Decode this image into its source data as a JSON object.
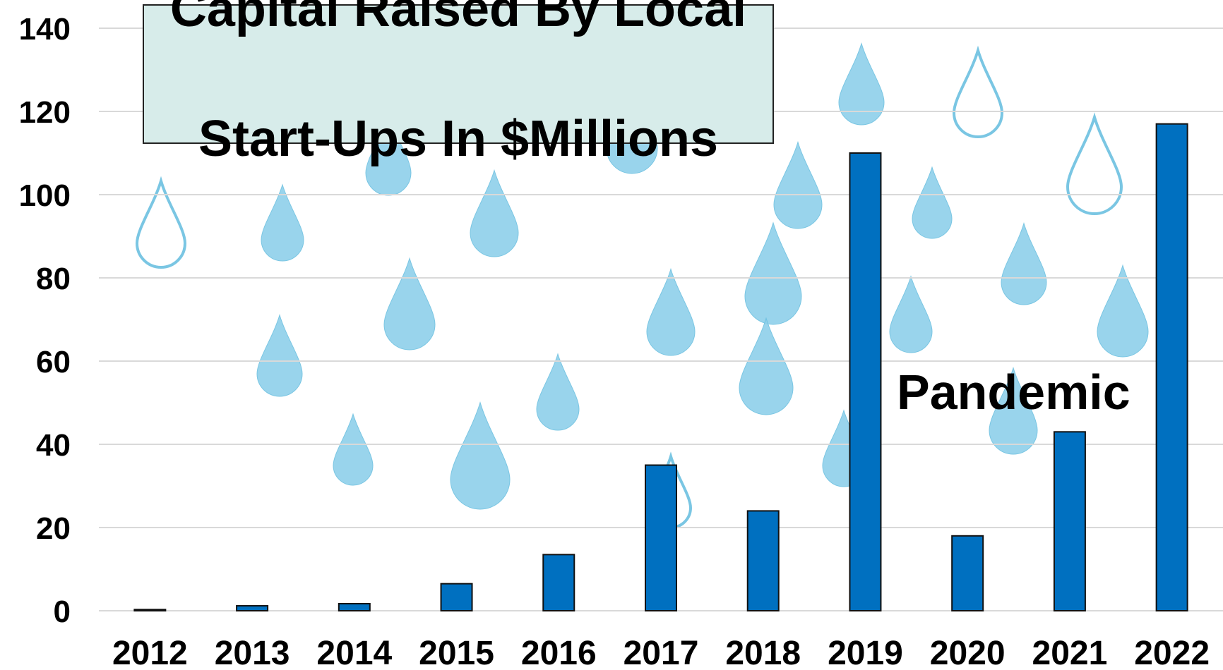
{
  "chart_data": {
    "type": "bar",
    "title": "Capital Raised By Local Start-Ups In $Millions",
    "categories": [
      "2012",
      "2013",
      "2014",
      "2015",
      "2016",
      "2017",
      "2018",
      "2019",
      "2020",
      "2021",
      "2022"
    ],
    "values": [
      0.3,
      1.2,
      1.7,
      6.5,
      13.5,
      35,
      24,
      110,
      18,
      43,
      117
    ],
    "ylim": [
      0,
      140
    ],
    "yticks": [
      "0",
      "20",
      "40",
      "60",
      "80",
      "100",
      "120",
      "140"
    ],
    "grid": true,
    "bar_color": "#0070c0",
    "annotations": [
      {
        "text": "Pandemic"
      }
    ]
  },
  "title_lines": [
    "Capital Raised By Local",
    "Start-Ups In $Millions"
  ],
  "colors": {
    "drop": "#8fd0ea",
    "drop_outline": "#6cc0e0",
    "title_bg": "#d7ecea"
  }
}
